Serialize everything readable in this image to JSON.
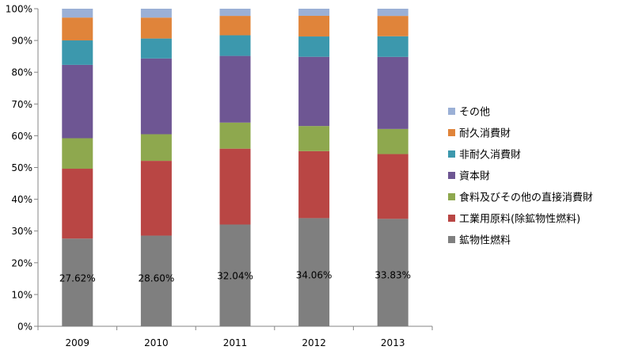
{
  "chart_data": {
    "type": "bar",
    "stacked": true,
    "percent_stacked": true,
    "categories": [
      "2009",
      "2010",
      "2011",
      "2012",
      "2013"
    ],
    "ylim": [
      0,
      100
    ],
    "yticks": [
      "0%",
      "10%",
      "20%",
      "30%",
      "40%",
      "50%",
      "60%",
      "70%",
      "80%",
      "90%",
      "100%"
    ],
    "grid": false,
    "legend_position": "right",
    "series": [
      {
        "name": "鉱物性燃料",
        "color": "#7f7f7f",
        "values": [
          27.62,
          28.6,
          32.04,
          34.06,
          33.83
        ]
      },
      {
        "name": "工業用原料(除鉱物性燃料)",
        "color": "#b94644",
        "values": [
          22.0,
          23.6,
          23.9,
          21.1,
          20.4
        ]
      },
      {
        "name": "食料及びその他の直接消費財",
        "color": "#8ea84e",
        "values": [
          9.6,
          8.4,
          8.2,
          7.9,
          7.9
        ]
      },
      {
        "name": "資本財",
        "color": "#6e5693",
        "values": [
          23.1,
          23.9,
          21.0,
          21.8,
          22.7
        ]
      },
      {
        "name": "非耐久消費財",
        "color": "#3c98ad",
        "values": [
          7.7,
          6.3,
          6.5,
          6.4,
          6.5
        ]
      },
      {
        "name": "耐久消費財",
        "color": "#e0843a",
        "values": [
          7.2,
          6.6,
          6.1,
          6.5,
          6.4
        ]
      },
      {
        "name": "その他",
        "color": "#9bb0d6",
        "values": [
          2.78,
          2.8,
          2.26,
          2.24,
          2.27
        ]
      }
    ],
    "data_labels": [
      {
        "series": "鉱物性燃料",
        "labels": [
          "27.62%",
          "28.60%",
          "32.04%",
          "34.06%",
          "33.83%"
        ]
      }
    ]
  }
}
